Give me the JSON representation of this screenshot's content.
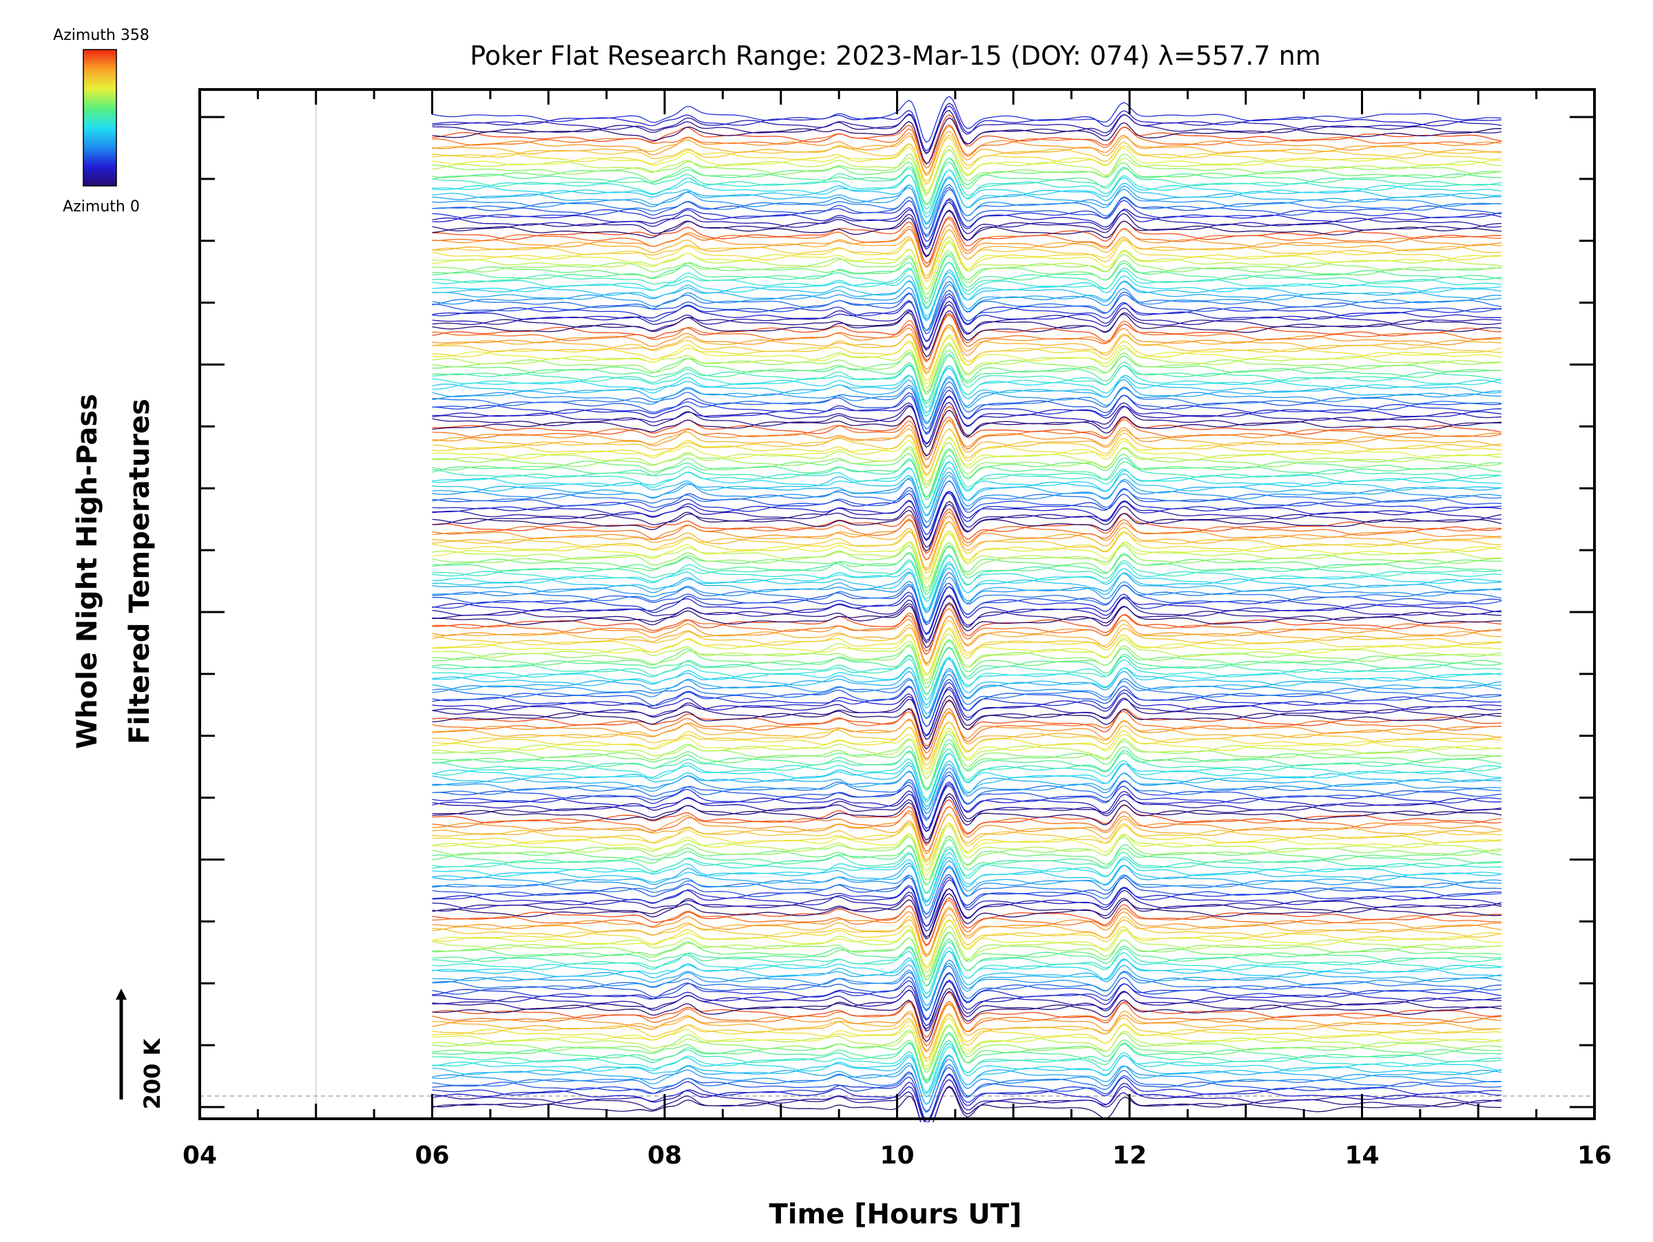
{
  "chart_data": {
    "type": "line",
    "title": "Poker Flat Research Range: 2023-Mar-15 (DOY: 074) λ=557.7 nm",
    "xlabel": "Time [Hours UT]",
    "ylabel_line1": "Whole Night High-Pass",
    "ylabel_line2": "Filtered Temperatures",
    "xlim": [
      4,
      16
    ],
    "x_ticks": [
      "04",
      "06",
      "08",
      "10",
      "12",
      "14",
      "16"
    ],
    "data_x_range": [
      6.0,
      15.2
    ],
    "n_traces": 245,
    "trace_offset_K": 25,
    "y_scale_label": "200 K",
    "colorbar": {
      "top_label": "Azimuth 358",
      "bottom_label": "Azimuth 0",
      "colormap": [
        "#2a0a6e",
        "#1f1fd6",
        "#1f8ef0",
        "#22e0f0",
        "#5cf07a",
        "#e9f03a",
        "#f9a227",
        "#ee2612"
      ]
    },
    "features": [
      {
        "x": 10.25,
        "amplitude_K": -60
      },
      {
        "x": 10.45,
        "amplitude_K": 40
      },
      {
        "x": 10.12,
        "amplitude_K": 30
      },
      {
        "x": 10.6,
        "amplitude_K": -25
      },
      {
        "x": 11.95,
        "amplitude_K": 25
      },
      {
        "x": 11.8,
        "amplitude_K": -15
      },
      {
        "x": 8.2,
        "amplitude_K": 15
      },
      {
        "x": 7.9,
        "amplitude_K": -10
      },
      {
        "x": 9.5,
        "amplitude_K": 10
      }
    ],
    "grid": true,
    "gridlines_x": [
      5
    ]
  }
}
